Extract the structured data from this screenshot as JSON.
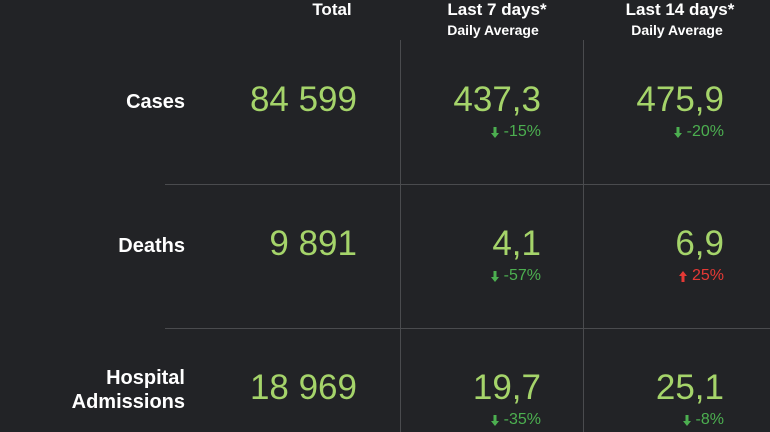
{
  "header": {
    "total": "Total",
    "last7": "Last 7 days*",
    "last7_sub": "Daily Average",
    "last14": "Last 14 days*",
    "last14_sub": "Daily Average"
  },
  "table": {
    "rows": [
      {
        "label": "Cases",
        "total": "84 599",
        "avg7": "437,3",
        "change7": "-15%",
        "avg14": "475,9",
        "change14": "-20%"
      },
      {
        "label": "Deaths",
        "total": "9 891",
        "avg7": "4,1",
        "change7": "-57%",
        "avg14": "6,9",
        "change14": "25%"
      },
      {
        "label": "Hospital Admissions",
        "total": "18 969",
        "avg7": "19,7",
        "change7": "-35%",
        "avg14": "25,1",
        "change14": "-8%"
      }
    ]
  }
}
